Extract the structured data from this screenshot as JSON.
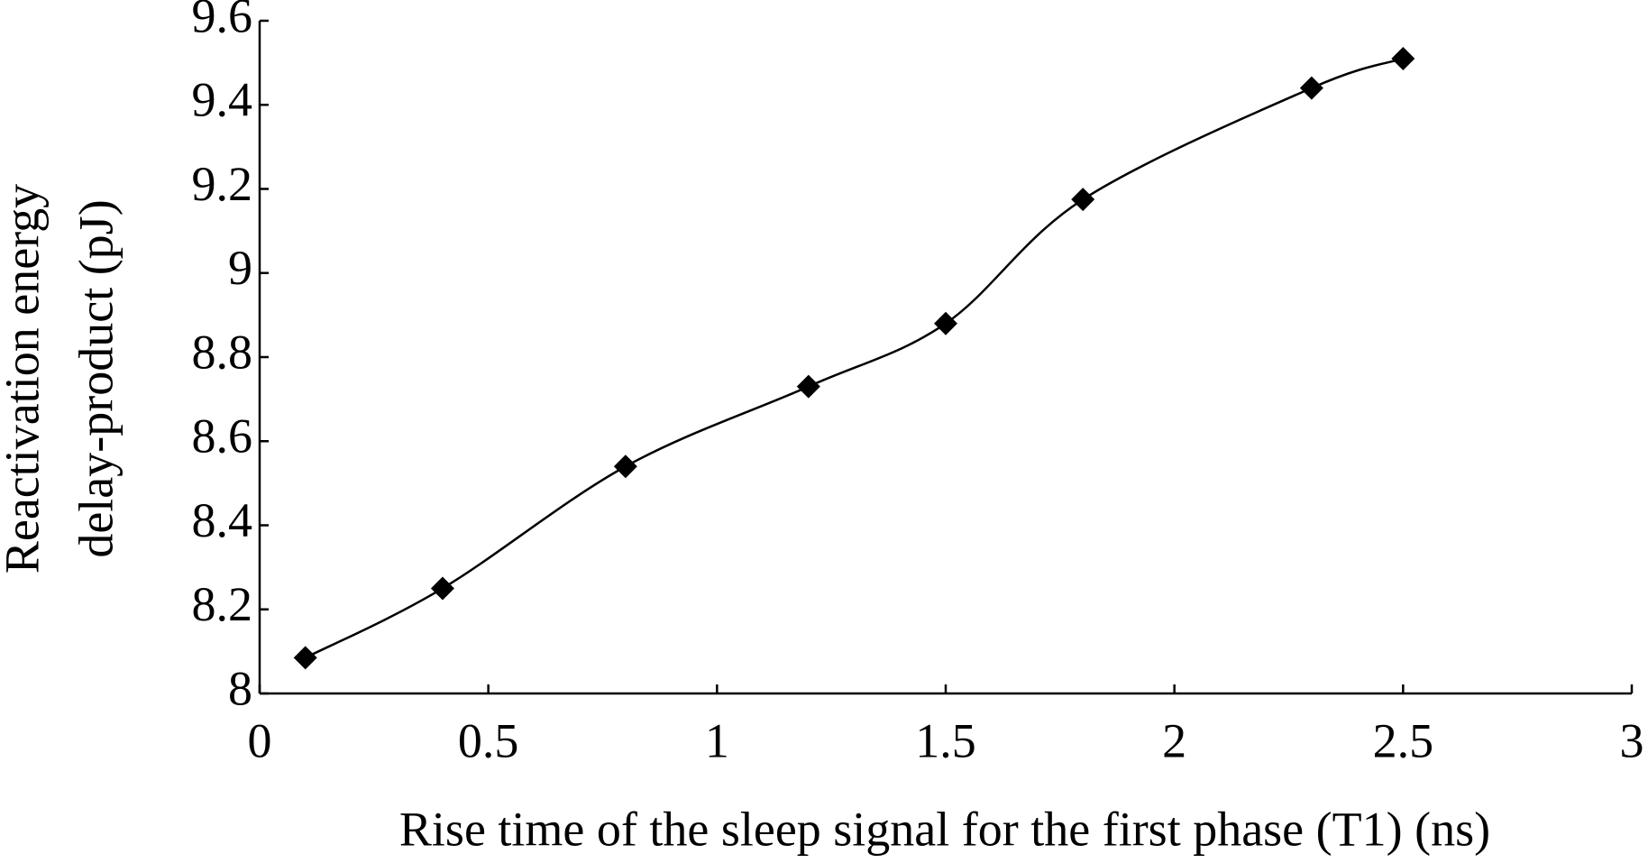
{
  "chart_data": {
    "type": "line",
    "xlabel": "Rise time of the sleep signal for the first phase (T1) (ns)",
    "ylabel": [
      "Reactivation energy",
      "delay-product (pJ)"
    ],
    "x": [
      0.1,
      0.4,
      0.8,
      1.2,
      1.5,
      1.8,
      2.3,
      2.5
    ],
    "values": [
      8.085,
      8.25,
      8.54,
      8.73,
      8.88,
      9.175,
      9.44,
      9.51
    ],
    "color": "#000000",
    "marker": "diamond",
    "smooth": true,
    "xlim": [
      0,
      3
    ],
    "xticks": [
      0,
      0.5,
      1,
      1.5,
      2,
      2.5,
      3
    ],
    "ylim": [
      8,
      9.6
    ],
    "yticks": [
      8,
      8.2,
      8.4,
      8.6,
      8.8,
      9,
      9.2,
      9.4,
      9.6
    ],
    "grid": false
  }
}
